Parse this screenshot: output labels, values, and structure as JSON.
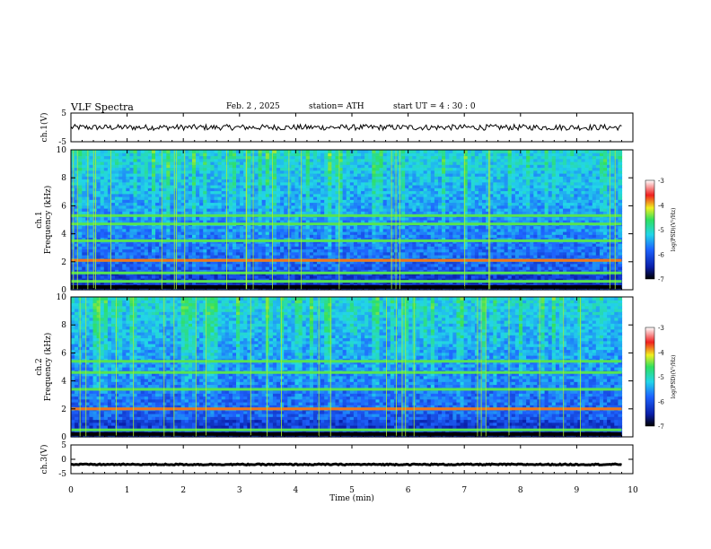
{
  "header": {
    "title": "VLF  Spectra",
    "date": "Feb. 2  , 2025",
    "station": "station= ATH",
    "start_ut": "start  UT  =   4  : 30 : 0"
  },
  "chart_data": [
    {
      "type": "line",
      "panel": "ch1-waveform",
      "ylabel": "ch.1(V)",
      "ylim": [
        -5,
        5
      ],
      "yticks": [
        "5",
        "-5"
      ],
      "xlim": [
        0,
        10
      ],
      "series": [
        {
          "x_range": [
            0,
            9.8
          ],
          "approx_level": 0.0,
          "approx_amplitude": 1.0
        }
      ]
    },
    {
      "type": "heatmap",
      "panel": "ch1-spectrogram",
      "ylabel": "ch.1\nFrequency  (kHz)",
      "ylim": [
        0,
        10
      ],
      "yticks": [
        "0",
        "2",
        "4",
        "6",
        "8",
        "10"
      ],
      "xlim": [
        0,
        10
      ],
      "data_x_range": [
        0,
        9.8
      ],
      "colorbar": {
        "label": "log(PSD)(V²/Hz)",
        "range": [
          -7,
          -3
        ],
        "ticks": [
          "-3",
          "-4",
          "-5",
          "-6",
          "-7"
        ]
      },
      "lines_khz": [
        0.6,
        1.2,
        2.1,
        3.5,
        4.7,
        5.3
      ],
      "strong_line_khz": 2.1
    },
    {
      "type": "heatmap",
      "panel": "ch2-spectrogram",
      "ylabel": "ch.2\nFrequency  (kHz)",
      "ylim": [
        0,
        10
      ],
      "yticks": [
        "0",
        "2",
        "4",
        "6",
        "8",
        "10"
      ],
      "xlim": [
        0,
        10
      ],
      "data_x_range": [
        0,
        9.8
      ],
      "colorbar": {
        "label": "log(PSD)(V²/Hz)",
        "range": [
          -7,
          -3
        ],
        "ticks": [
          "-3",
          "-4",
          "-5",
          "-6",
          "-7"
        ]
      },
      "lines_khz": [
        0.5,
        2.0,
        3.4,
        4.6,
        5.4
      ],
      "strong_line_khz": 2.0
    },
    {
      "type": "line",
      "panel": "ch3-waveform",
      "ylabel": "ch.3(V)",
      "ylim": [
        -5,
        5
      ],
      "yticks": [
        "5",
        "0",
        "-5"
      ],
      "xlim": [
        0,
        10
      ],
      "series": [
        {
          "x_range": [
            0,
            9.8
          ],
          "approx_level": -1.8,
          "approx_amplitude": 0.2
        }
      ]
    }
  ],
  "x_axis": {
    "label": "Time  (min)",
    "ticks": [
      "0",
      "1",
      "2",
      "3",
      "4",
      "5",
      "6",
      "7",
      "8",
      "9",
      "10"
    ]
  }
}
